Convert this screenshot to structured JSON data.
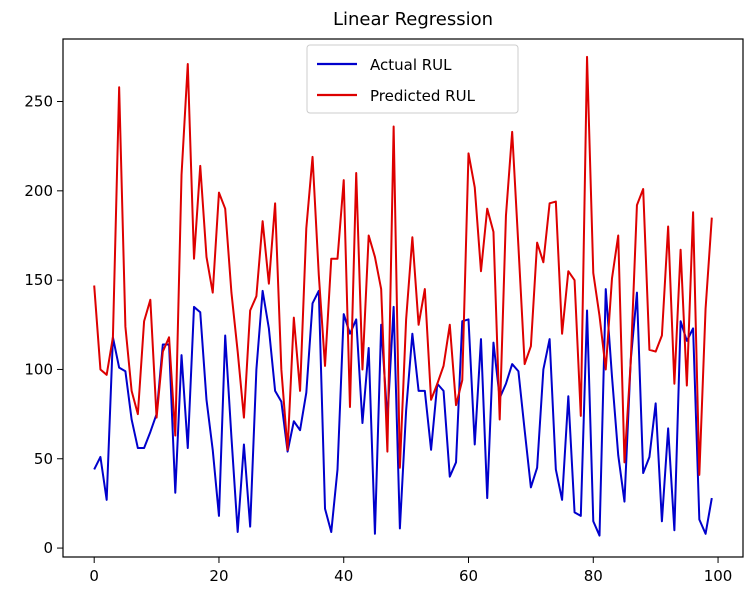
{
  "chart_data": {
    "type": "line",
    "title": "Linear Regression",
    "xlabel": "",
    "ylabel": "",
    "xlim": [
      -5,
      104
    ],
    "ylim": [
      -5,
      285
    ],
    "xticks": [
      0,
      20,
      40,
      60,
      80,
      100
    ],
    "yticks": [
      0,
      50,
      100,
      150,
      200,
      250
    ],
    "legend_position": "top-center",
    "grid": false,
    "series": [
      {
        "name": "Actual RUL",
        "color": "#0000cc",
        "x": [
          0,
          1,
          2,
          3,
          4,
          5,
          6,
          7,
          8,
          9,
          10,
          11,
          12,
          13,
          14,
          15,
          16,
          17,
          18,
          19,
          20,
          21,
          22,
          23,
          24,
          25,
          26,
          27,
          28,
          29,
          30,
          31,
          32,
          33,
          34,
          35,
          36,
          37,
          38,
          39,
          40,
          41,
          42,
          43,
          44,
          45,
          46,
          47,
          48,
          49,
          50,
          51,
          52,
          53,
          54,
          55,
          56,
          57,
          58,
          59,
          60,
          61,
          62,
          63,
          64,
          65,
          66,
          67,
          68,
          69,
          70,
          71,
          72,
          73,
          74,
          75,
          76,
          77,
          78,
          79,
          80,
          81,
          82,
          83,
          84,
          85,
          86,
          87,
          88,
          89,
          90,
          91,
          92,
          93,
          94,
          95,
          96,
          97,
          98,
          99
        ],
        "values": [
          44,
          51,
          27,
          118,
          101,
          99,
          72,
          56,
          56,
          65,
          75,
          114,
          114,
          31,
          108,
          56,
          135,
          132,
          83,
          55,
          18,
          119,
          62,
          9,
          58,
          12,
          100,
          144,
          123,
          88,
          82,
          54,
          71,
          66,
          87,
          137,
          144,
          22,
          9,
          44,
          131,
          120,
          128,
          70,
          112,
          8,
          125,
          72,
          135,
          11,
          77,
          120,
          88,
          88,
          55,
          92,
          88,
          40,
          48,
          127,
          128,
          58,
          117,
          28,
          115,
          84,
          92,
          103,
          99,
          66,
          34,
          45,
          100,
          117,
          44,
          27,
          85,
          20,
          18,
          133,
          15,
          7,
          145,
          96,
          52,
          26,
          105,
          143,
          42,
          51,
          81,
          15,
          67,
          10,
          127,
          116,
          123,
          16,
          8,
          28
        ]
      },
      {
        "name": "Predicted RUL",
        "color": "#dd0000",
        "x": [
          0,
          1,
          2,
          3,
          4,
          5,
          6,
          7,
          8,
          9,
          10,
          11,
          12,
          13,
          14,
          15,
          16,
          17,
          18,
          19,
          20,
          21,
          22,
          23,
          24,
          25,
          26,
          27,
          28,
          29,
          30,
          31,
          32,
          33,
          34,
          35,
          36,
          37,
          38,
          39,
          40,
          41,
          42,
          43,
          44,
          45,
          46,
          47,
          48,
          49,
          50,
          51,
          52,
          53,
          54,
          55,
          56,
          57,
          58,
          59,
          60,
          61,
          62,
          63,
          64,
          65,
          66,
          67,
          68,
          69,
          70,
          71,
          72,
          73,
          74,
          75,
          76,
          77,
          78,
          79,
          80,
          81,
          82,
          83,
          84,
          85,
          86,
          87,
          88,
          89,
          90,
          91,
          92,
          93,
          94,
          95,
          96,
          97,
          98,
          99
        ],
        "values": [
          147,
          100,
          97,
          118,
          258,
          124,
          88,
          75,
          127,
          139,
          73,
          110,
          118,
          63,
          209,
          271,
          162,
          214,
          163,
          143,
          199,
          190,
          143,
          110,
          73,
          133,
          141,
          183,
          148,
          193,
          100,
          55,
          129,
          88,
          179,
          219,
          153,
          102,
          162,
          162,
          206,
          79,
          210,
          100,
          175,
          163,
          145,
          54,
          236,
          45,
          128,
          174,
          125,
          145,
          83,
          92,
          102,
          125,
          80,
          94,
          221,
          202,
          155,
          190,
          177,
          72,
          186,
          233,
          169,
          103,
          113,
          171,
          160,
          193,
          194,
          120,
          155,
          150,
          74,
          275,
          154,
          130,
          100,
          151,
          175,
          48,
          104,
          192,
          201,
          111,
          110,
          119,
          180,
          92,
          167,
          91,
          188,
          41,
          134,
          185
        ]
      }
    ]
  }
}
